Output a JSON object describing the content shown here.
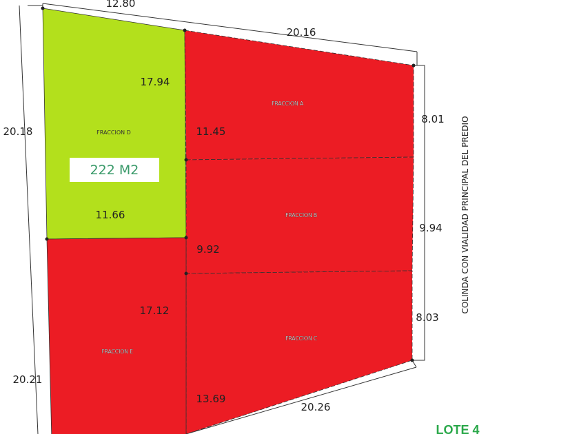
{
  "fractions": [
    {
      "label": "FRACCION A",
      "color": "#ec1c24"
    },
    {
      "label": "FRACCION B",
      "color": "#ec1c24"
    },
    {
      "label": "FRACCION C",
      "color": "#ec1c24"
    },
    {
      "label": "FRACCION D",
      "color": "#b3e01c",
      "area": "222 M2"
    },
    {
      "label": "FRACCION E",
      "color": "#ec1c24"
    }
  ],
  "dimensions": {
    "top_left": "12.80",
    "top_right": "20.16",
    "d_right": "17.94",
    "a_left": "11.45",
    "left_upper": "20.18",
    "right_a": "8.01",
    "d_bottom": "11.66",
    "right_b": "9.94",
    "b_left": "9.92",
    "e_right": "17.12",
    "right_c": "8.03",
    "left_lower": "20.21",
    "c_left": "13.69",
    "bottom": "20.26"
  },
  "side_note": "COLINDA CON VIALIDAD PRINCIPAL DEL PREDIO",
  "lot_label": "LOTE 4"
}
